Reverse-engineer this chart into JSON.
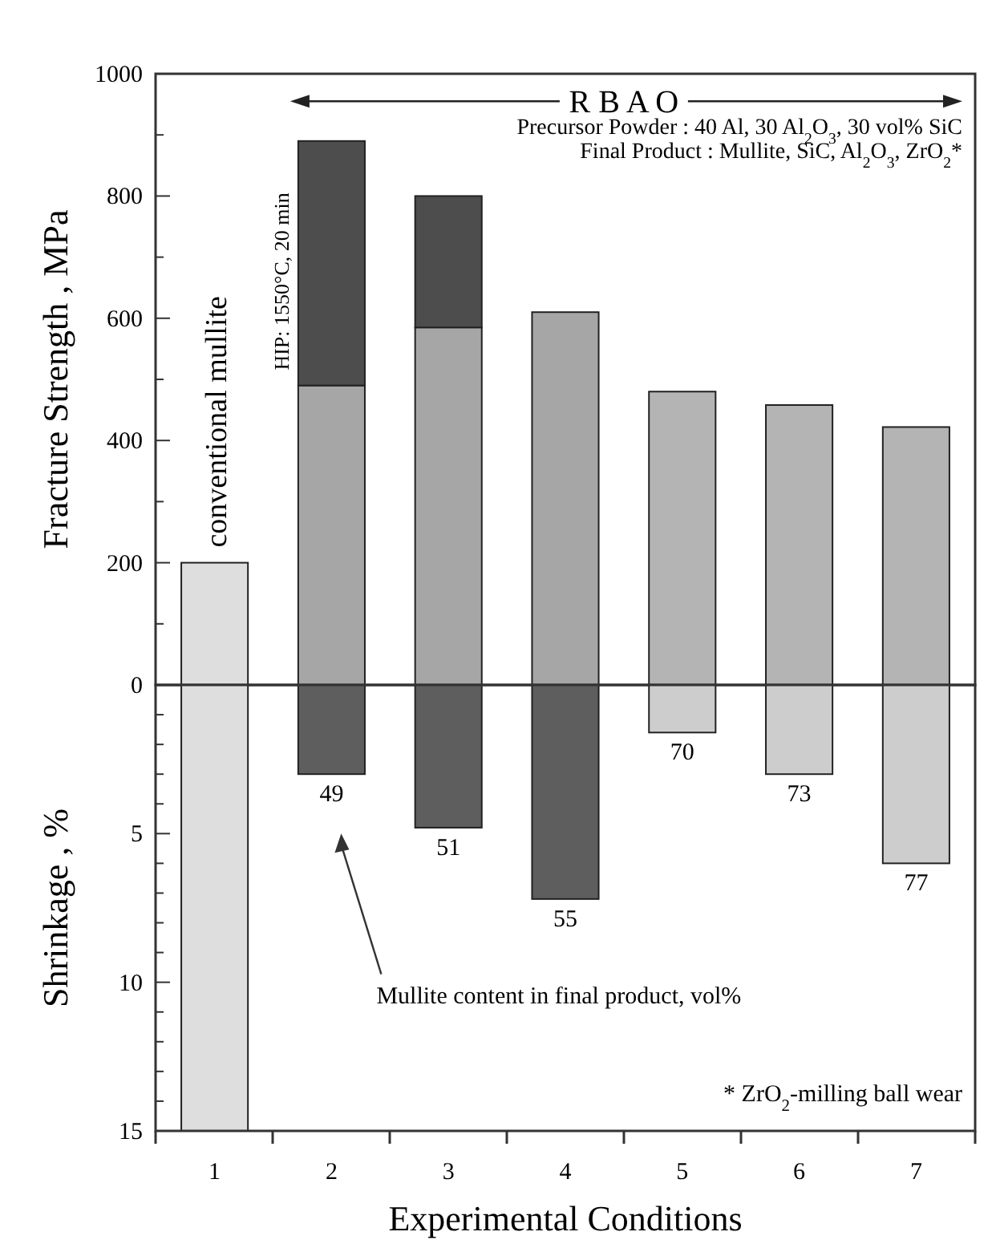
{
  "chart_data": [
    {
      "type": "bar",
      "stacked": true,
      "ylabel": "Fracture Strength ,  MPa",
      "categories": [
        null,
        null,
        null,
        null,
        null,
        null,
        null
      ],
      "tick_labels": "y",
      "ylim": [
        0,
        1000
      ],
      "yticks": [
        0,
        {
          "value": 100,
          "label": null
        },
        200,
        {
          "value": 300,
          "label": null
        },
        400,
        {
          "value": 500,
          "label": null
        },
        600,
        {
          "value": 700,
          "label": null
        },
        800,
        {
          "value": 900,
          "label": null
        },
        1000
      ],
      "series": [
        {
          "colors": [
            "#dedede",
            "#a6a6a6",
            "#a6a6a6",
            "#a6a6a6",
            "#b4b4b4",
            "#b4b4b4",
            "#b4b4b4"
          ],
          "values": [
            200,
            490,
            585,
            610,
            480,
            458,
            422
          ]
        },
        {
          "color": "#4d4d4d",
          "values": [
            null,
            400,
            215,
            null,
            null,
            null,
            null
          ]
        }
      ],
      "annotations": [
        "R B A O",
        "Precursor Powder :  40 Al, 30 Al$_{2}$O$_{3}$, 30 vol% SiC",
        "Final Product :  Mullite, SiC, Al$_{2}$O$_{3}$, ZrO$_{2}$*",
        "conventional mullite",
        "HIP: 1550°C, 20 min"
      ]
    },
    {
      "type": "bar",
      "ylabel": "Shrinkage ,  %",
      "xlabel": "Experimental Conditions",
      "categories": [
        "1",
        "2",
        "3",
        "4",
        "5",
        "6",
        "7"
      ],
      "ylim": [
        15,
        0
      ],
      "yticks": [
        {
          "value": 0,
          "label": null
        },
        {
          "value": 1,
          "label": null
        },
        {
          "value": 2,
          "label": null
        },
        {
          "value": 3,
          "label": null
        },
        {
          "value": 4,
          "label": null
        },
        5,
        {
          "value": 6,
          "label": null
        },
        {
          "value": 7,
          "label": null
        },
        {
          "value": 8,
          "label": null
        },
        {
          "value": 9,
          "label": null
        },
        10,
        {
          "value": 11,
          "label": null
        },
        {
          "value": 12,
          "label": null
        },
        {
          "value": 13,
          "label": null
        },
        {
          "value": 14,
          "label": null
        },
        15
      ],
      "colors": [
        "#dedede",
        "#5e5e5e",
        "#5e5e5e",
        "#5e5e5e",
        "#cdcdcd",
        "#cdcdcd",
        "#cdcdcd"
      ],
      "values": [
        15,
        3.0,
        4.8,
        7.2,
        1.6,
        3.0,
        6.0
      ],
      "annotations": [
        "Mullite content in final product, vol%",
        "* ZrO$_{2}$-milling ball wear",
        {
          "text": "49",
          "x": "2",
          "y": 3.0
        },
        {
          "text": "51",
          "x": "3",
          "y": 4.8
        },
        {
          "text": "55",
          "x": "4",
          "y": 7.2
        },
        {
          "text": "70",
          "x": "5",
          "y": 1.6
        },
        {
          "text": "73",
          "x": "6",
          "y": 3.0
        },
        {
          "text": "77",
          "x": "7",
          "y": 6.0
        }
      ]
    }
  ]
}
